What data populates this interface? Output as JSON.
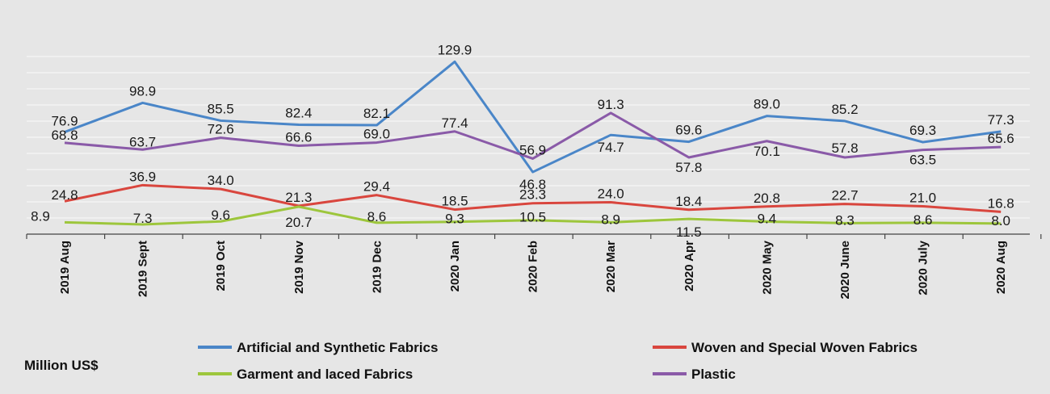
{
  "chart_data": {
    "type": "line",
    "unit_label": "Million US$",
    "categories": [
      "2019 Aug",
      "2019 Sept",
      "2019 Oct",
      "2019 Nov",
      "2019 Dec",
      "2020 Jan",
      "2020 Feb",
      "2020 Mar",
      "2020 Apr",
      "2020 May",
      "2020 June",
      "2020 July",
      "2020 Aug"
    ],
    "ylim": [
      0,
      140
    ],
    "grid": true,
    "legend_position": "bottom",
    "series": [
      {
        "name": "Artificial and Synthetic Fabrics",
        "color": "#4a86c8",
        "values": [
          76.9,
          98.9,
          85.5,
          82.4,
          82.1,
          129.9,
          46.8,
          74.7,
          69.6,
          89.0,
          85.2,
          69.3,
          77.3
        ],
        "labels": [
          "76.9",
          "98.9",
          "85.5",
          "82.4",
          "82.1",
          "129.9",
          "46.8",
          "74.7",
          "69.6",
          "89.0",
          "85.2",
          "69.3",
          "77.3"
        ]
      },
      {
        "name": "Plastic",
        "color": "#8a5aa8",
        "values": [
          68.8,
          63.7,
          72.6,
          66.6,
          69.0,
          77.4,
          56.9,
          91.3,
          57.8,
          70.1,
          57.8,
          63.5,
          65.6
        ],
        "labels": [
          "68.8",
          "63.7",
          "72.6",
          "66.6",
          "69.0",
          "77.4",
          "56.9",
          "91.3",
          "57.8",
          "70.1",
          "57.8",
          "63.5",
          "65.6"
        ]
      },
      {
        "name": "Woven and Special Woven Fabrics",
        "color": "#d9463e",
        "values": [
          24.8,
          36.9,
          34.0,
          21.3,
          29.4,
          18.5,
          23.3,
          24.0,
          18.4,
          20.8,
          22.7,
          21.0,
          16.8
        ],
        "labels": [
          "24.8",
          "36.9",
          "34.0",
          "21.3",
          "29.4",
          "18.5",
          "23.3",
          "24.0",
          "18.4",
          "20.8",
          "22.7",
          "21.0",
          "16.8"
        ]
      },
      {
        "name": "Garment and laced Fabrics",
        "color": "#9dc63c",
        "values": [
          8.9,
          7.3,
          9.6,
          20.7,
          8.6,
          9.3,
          10.5,
          8.9,
          11.5,
          9.4,
          8.3,
          8.6,
          8.0
        ],
        "labels": [
          "8.9",
          "7.3",
          "9.6",
          "20.7",
          "8.6",
          "9.3",
          "10.5",
          "8.9",
          "11.5",
          "9.4",
          "8.3",
          "8.6",
          "8.0"
        ]
      }
    ],
    "legend": [
      {
        "series": 0,
        "label": "Artificial and Synthetic Fabrics",
        "color": "#4a86c8"
      },
      {
        "series": 2,
        "label": "Woven and Special Woven Fabrics",
        "color": "#d9463e"
      },
      {
        "series": 3,
        "label": "Garment and laced Fabrics",
        "color": "#9dc63c"
      },
      {
        "series": 1,
        "label": "Plastic",
        "color": "#8a5aa8"
      }
    ]
  }
}
